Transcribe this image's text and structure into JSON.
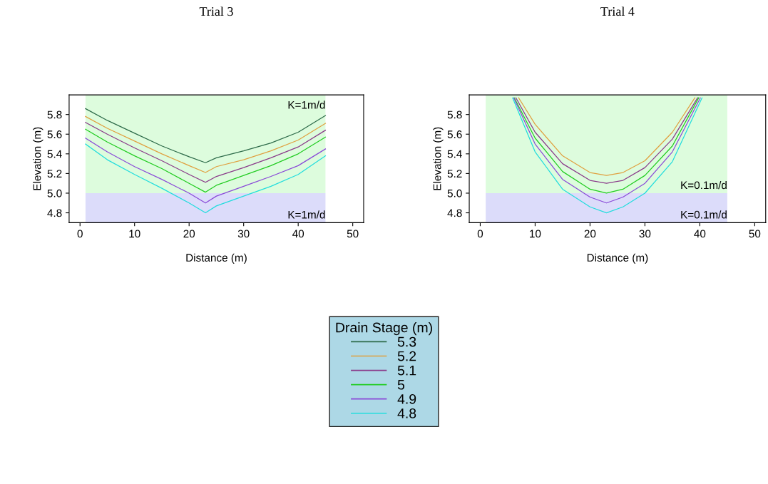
{
  "chart_data": [
    {
      "type": "line",
      "title": "Trial 3",
      "xlabel": "Distance (m)",
      "ylabel": "Elevation (m)",
      "xlim": [
        -2,
        52
      ],
      "ylim": [
        4.7,
        6.0
      ],
      "xticks": [
        0,
        10,
        20,
        30,
        40,
        50
      ],
      "yticks": [
        4.8,
        {
          "value": 5.0,
          "label": "5.0"
        },
        5.2,
        5.4,
        5.6,
        5.8
      ],
      "grid": false,
      "legend": "bottom",
      "legend_title": "Drain Stage (m)",
      "x": [
        1,
        5,
        10,
        15,
        20,
        23,
        25,
        30,
        35,
        40,
        45
      ],
      "series": [
        {
          "name": "5.3",
          "color": "#2e6b4a",
          "values": [
            5.86,
            5.74,
            5.61,
            5.48,
            5.37,
            5.31,
            5.36,
            5.43,
            5.51,
            5.62,
            5.79
          ]
        },
        {
          "name": "5.2",
          "color": "#e0a040",
          "values": [
            5.78,
            5.66,
            5.53,
            5.4,
            5.28,
            5.21,
            5.27,
            5.34,
            5.43,
            5.54,
            5.71
          ]
        },
        {
          "name": "5.1",
          "color": "#8a3a8a",
          "values": [
            5.72,
            5.6,
            5.46,
            5.33,
            5.19,
            5.11,
            5.17,
            5.26,
            5.36,
            5.47,
            5.64
          ]
        },
        {
          "name": "5",
          "color": "#22cc22",
          "values": [
            5.65,
            5.52,
            5.38,
            5.25,
            5.1,
            5.01,
            5.08,
            5.18,
            5.28,
            5.4,
            5.57
          ]
        },
        {
          "name": "4.9",
          "color": "#8a4ad8",
          "values": [
            5.56,
            5.42,
            5.27,
            5.14,
            5.0,
            4.9,
            4.97,
            5.07,
            5.17,
            5.28,
            5.45
          ]
        },
        {
          "name": "4.8",
          "color": "#22dddd",
          "values": [
            5.5,
            5.34,
            5.19,
            5.05,
            4.9,
            4.8,
            4.87,
            4.97,
            5.07,
            5.19,
            5.38
          ]
        }
      ],
      "bands": [
        {
          "axis": "y",
          "from": 5.0,
          "to": 6.0,
          "color": "#ddfcdd"
        },
        {
          "axis": "y",
          "from": 4.7,
          "to": 5.0,
          "color": "#dcdcfa"
        }
      ],
      "annotations": [
        "K=1m/d",
        "K=1m/d"
      ]
    },
    {
      "type": "line",
      "title": "Trial 4",
      "xlabel": "Distance (m)",
      "ylabel": "Elevation (m)",
      "xlim": [
        -2,
        52
      ],
      "ylim": [
        4.7,
        6.0
      ],
      "xticks": [
        0,
        10,
        20,
        30,
        40,
        50
      ],
      "yticks": [
        4.8,
        {
          "value": 5.0,
          "label": "5.0"
        },
        5.2,
        5.4,
        5.6,
        5.8
      ],
      "grid": false,
      "series": [
        {
          "name": "5.2",
          "color": "#e0a040",
          "x": [
            7.0,
            10,
            15,
            20,
            23,
            26,
            30,
            35,
            39.1
          ],
          "values": [
            5.97,
            5.7,
            5.38,
            5.21,
            5.18,
            5.21,
            5.33,
            5.62,
            5.97
          ]
        },
        {
          "name": "5.1",
          "color": "#8a3a8a",
          "x": [
            6.5,
            10,
            15,
            20,
            23,
            26,
            30,
            35,
            39.6
          ],
          "values": [
            5.97,
            5.62,
            5.3,
            5.13,
            5.1,
            5.13,
            5.26,
            5.55,
            5.97
          ]
        },
        {
          "name": "5",
          "color": "#22cc22",
          "x": [
            6.2,
            10,
            15,
            20,
            23,
            26,
            30,
            35,
            39.8
          ],
          "values": [
            5.97,
            5.56,
            5.22,
            5.04,
            5.0,
            5.04,
            5.18,
            5.48,
            5.97
          ]
        },
        {
          "name": "4.9",
          "color": "#8a4ad8",
          "x": [
            6.1,
            10,
            15,
            20,
            23,
            26,
            30,
            35,
            40.1
          ],
          "values": [
            5.97,
            5.5,
            5.14,
            4.96,
            4.9,
            4.96,
            5.1,
            5.42,
            5.97
          ]
        },
        {
          "name": "4.8",
          "color": "#22dddd",
          "x": [
            5.9,
            10,
            15,
            20,
            23,
            26,
            30,
            35,
            40.4
          ],
          "values": [
            5.97,
            5.42,
            5.04,
            4.86,
            4.8,
            4.86,
            5.0,
            5.32,
            5.97
          ]
        }
      ],
      "bands": [
        {
          "axis": "y",
          "from": 5.0,
          "to": 6.0,
          "color": "#ddfcdd"
        },
        {
          "axis": "y",
          "from": 4.7,
          "to": 5.0,
          "color": "#dcdcfa"
        }
      ],
      "annotations": [
        "K=0.1m/d",
        "K=0.1m/d"
      ]
    }
  ]
}
